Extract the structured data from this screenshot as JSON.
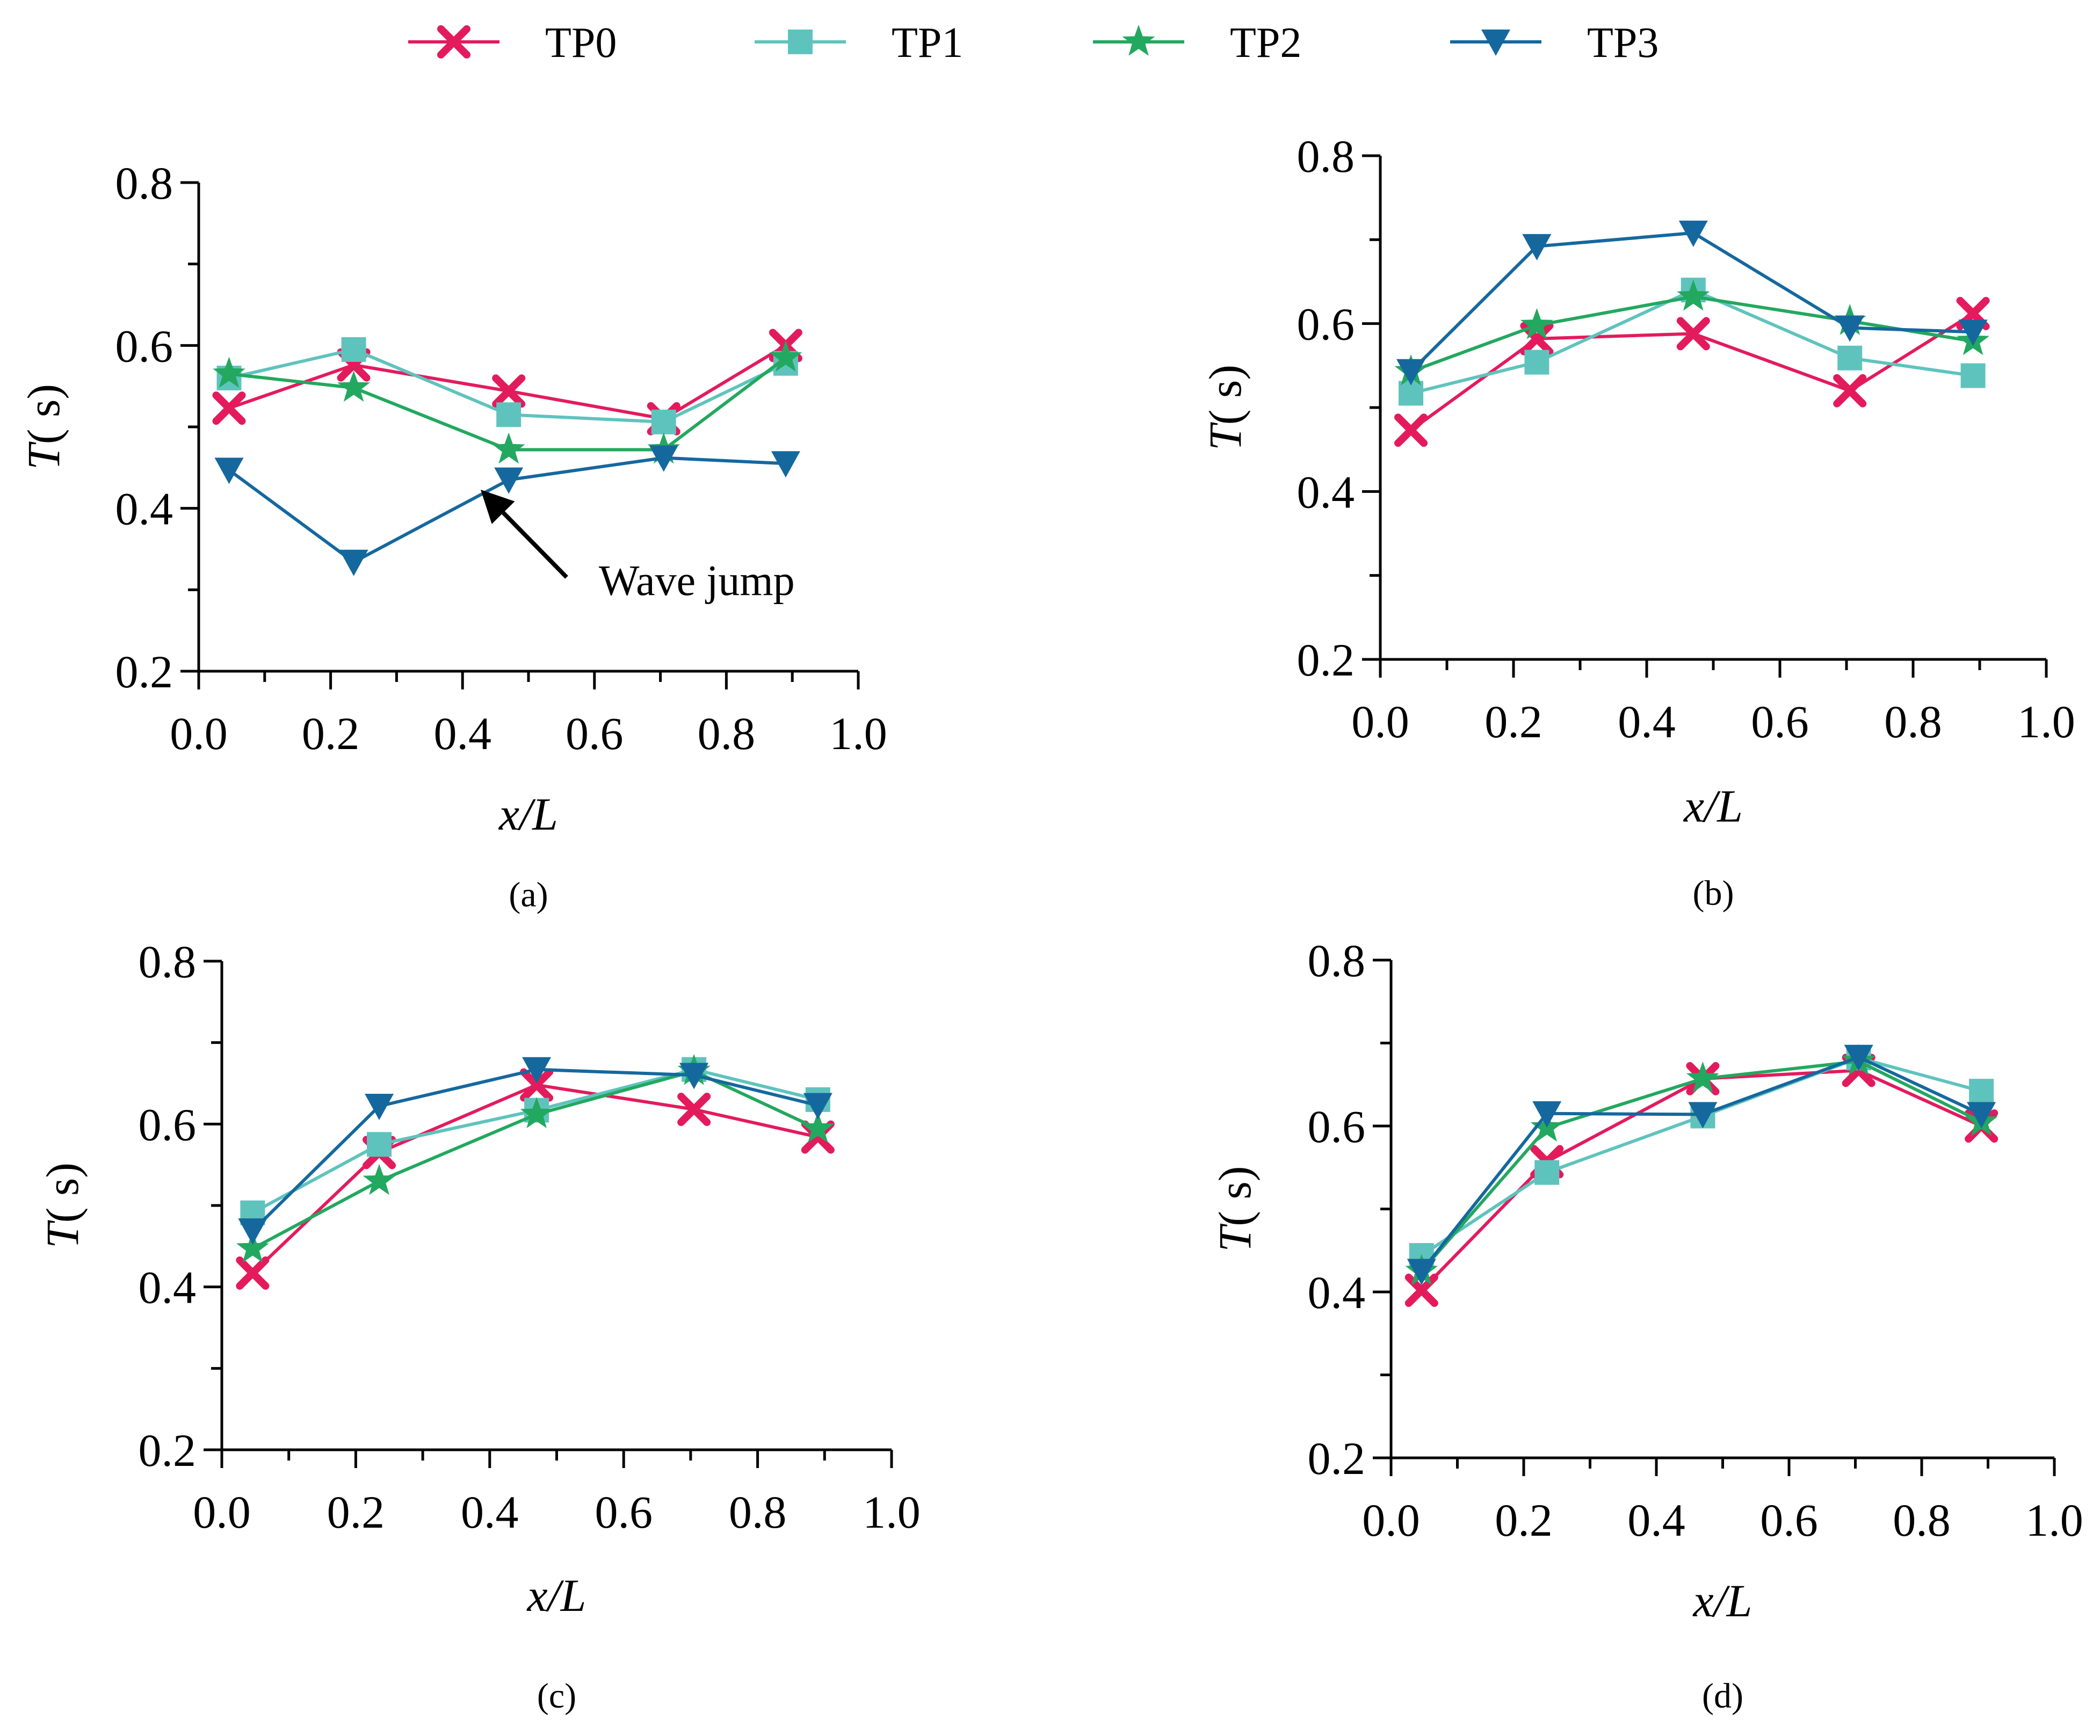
{
  "legend": [
    {
      "name": "TP0",
      "marker": "x-marker",
      "color": "#e31b5d"
    },
    {
      "name": "TP1",
      "marker": "square-marker",
      "color": "#5fc3bd"
    },
    {
      "name": "TP2",
      "marker": "star-marker",
      "color": "#23a85f"
    },
    {
      "name": "TP3",
      "marker": "triangle-down-marker",
      "color": "#15689e"
    }
  ],
  "chart_data": [
    {
      "type": "line",
      "panel": "(a)",
      "xlabel": "x/L",
      "ylabel_main": "T",
      "ylabel_unit": "( s)",
      "xlim": [
        0.0,
        1.0
      ],
      "ylim": [
        0.2,
        0.8
      ],
      "xticks": [
        "0.0",
        "0.2",
        "0.4",
        "0.6",
        "0.8",
        "1.0"
      ],
      "yticks": [
        "0.2",
        "0.4",
        "0.6",
        "0.8"
      ],
      "x": [
        0.046,
        0.235,
        0.47,
        0.705,
        0.89
      ],
      "series": [
        {
          "name": "TP0",
          "values": [
            0.523,
            0.576,
            0.544,
            0.51,
            0.6
          ]
        },
        {
          "name": "TP1",
          "values": [
            0.56,
            0.595,
            0.515,
            0.506,
            0.578
          ]
        },
        {
          "name": "TP2",
          "values": [
            0.565,
            0.548,
            0.472,
            0.472,
            0.585
          ]
        },
        {
          "name": "TP3",
          "values": [
            0.447,
            0.334,
            0.435,
            0.462,
            0.455
          ]
        }
      ],
      "annotation": {
        "text": "Wave jump",
        "x": 0.43,
        "y": 0.43
      }
    },
    {
      "type": "line",
      "panel": "(b)",
      "xlabel": "x/L",
      "ylabel_main": "T",
      "ylabel_unit": "( s)",
      "xlim": [
        0.0,
        1.0
      ],
      "ylim": [
        0.2,
        0.8
      ],
      "xticks": [
        "0.0",
        "0.2",
        "0.4",
        "0.6",
        "0.8",
        "1.0"
      ],
      "yticks": [
        "0.2",
        "0.4",
        "0.6",
        "0.8"
      ],
      "x": [
        0.046,
        0.235,
        0.47,
        0.705,
        0.89
      ],
      "series": [
        {
          "name": "TP0",
          "values": [
            0.473,
            0.582,
            0.588,
            0.52,
            0.612
          ]
        },
        {
          "name": "TP1",
          "values": [
            0.517,
            0.554,
            0.64,
            0.559,
            0.538
          ]
        },
        {
          "name": "TP2",
          "values": [
            0.543,
            0.598,
            0.632,
            0.603,
            0.579
          ]
        },
        {
          "name": "TP3",
          "values": [
            0.543,
            0.692,
            0.708,
            0.595,
            0.59
          ]
        }
      ]
    },
    {
      "type": "line",
      "panel": "(c)",
      "xlabel": "x/L",
      "ylabel_main": "T",
      "ylabel_unit": "( s)",
      "xlim": [
        0.0,
        1.0
      ],
      "ylim": [
        0.2,
        0.8
      ],
      "xticks": [
        "0.0",
        "0.2",
        "0.4",
        "0.6",
        "0.8",
        "1.0"
      ],
      "yticks": [
        "0.2",
        "0.4",
        "0.6",
        "0.8"
      ],
      "x": [
        0.046,
        0.235,
        0.47,
        0.705,
        0.89
      ],
      "series": [
        {
          "name": "TP0",
          "values": [
            0.417,
            0.565,
            0.648,
            0.618,
            0.584
          ]
        },
        {
          "name": "TP1",
          "values": [
            0.491,
            0.575,
            0.617,
            0.667,
            0.63
          ]
        },
        {
          "name": "TP2",
          "values": [
            0.447,
            0.53,
            0.612,
            0.665,
            0.594
          ]
        },
        {
          "name": "TP3",
          "values": [
            0.469,
            0.622,
            0.667,
            0.66,
            0.623
          ]
        }
      ]
    },
    {
      "type": "line",
      "panel": "(d)",
      "xlabel": "x/L",
      "ylabel_main": "T",
      "ylabel_unit": "( s)",
      "xlim": [
        0.0,
        1.0
      ],
      "ylim": [
        0.2,
        0.8
      ],
      "xticks": [
        "0.0",
        "0.2",
        "0.4",
        "0.6",
        "0.8",
        "1.0"
      ],
      "yticks": [
        "0.2",
        "0.4",
        "0.6",
        "0.8"
      ],
      "x": [
        0.046,
        0.235,
        0.47,
        0.705,
        0.89
      ],
      "series": [
        {
          "name": "TP0",
          "values": [
            0.402,
            0.557,
            0.657,
            0.667,
            0.6
          ]
        },
        {
          "name": "TP1",
          "values": [
            0.444,
            0.544,
            0.612,
            0.682,
            0.642
          ]
        },
        {
          "name": "TP2",
          "values": [
            0.425,
            0.598,
            0.657,
            0.678,
            0.605
          ]
        },
        {
          "name": "TP3",
          "values": [
            0.425,
            0.615,
            0.614,
            0.683,
            0.614
          ]
        }
      ]
    }
  ]
}
